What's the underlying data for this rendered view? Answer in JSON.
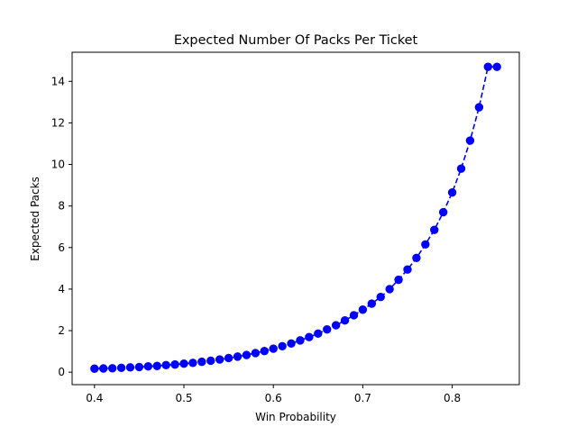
{
  "chart_data": {
    "type": "line",
    "title": "Expected Number Of Packs Per Ticket",
    "xlabel": "Win Probability",
    "ylabel": "Expected Packs",
    "xlim": [
      0.375,
      0.875
    ],
    "ylim": [
      -0.6,
      15.4
    ],
    "x_ticks": [
      0.4,
      0.5,
      0.6,
      0.7,
      0.8
    ],
    "x_tick_labels": [
      "0.4",
      "0.5",
      "0.6",
      "0.7",
      "0.8"
    ],
    "y_ticks": [
      0,
      2,
      4,
      6,
      8,
      10,
      12,
      14
    ],
    "y_tick_labels": [
      "0",
      "2",
      "4",
      "6",
      "8",
      "10",
      "12",
      "14"
    ],
    "grid": false,
    "series": [
      {
        "color": "#0000ff",
        "line_style": "dashed",
        "marker": "circle",
        "x": [
          0.4,
          0.41,
          0.42,
          0.43,
          0.44,
          0.45,
          0.46,
          0.47,
          0.48,
          0.49,
          0.5,
          0.51,
          0.52,
          0.53,
          0.54,
          0.55,
          0.56,
          0.57,
          0.58,
          0.59,
          0.6,
          0.61,
          0.62,
          0.63,
          0.64,
          0.65,
          0.66,
          0.67,
          0.68,
          0.69,
          0.7,
          0.71,
          0.72,
          0.73,
          0.74,
          0.75,
          0.76,
          0.77,
          0.78,
          0.79,
          0.8,
          0.81,
          0.82,
          0.83,
          0.84,
          0.85
        ],
        "y": [
          0.17,
          0.18,
          0.19,
          0.21,
          0.23,
          0.25,
          0.28,
          0.3,
          0.34,
          0.37,
          0.41,
          0.45,
          0.5,
          0.55,
          0.61,
          0.68,
          0.75,
          0.83,
          0.92,
          1.02,
          1.13,
          1.25,
          1.38,
          1.53,
          1.69,
          1.86,
          2.06,
          2.26,
          2.49,
          2.74,
          3.01,
          3.3,
          3.62,
          4.0,
          4.45,
          4.94,
          5.5,
          6.15,
          6.85,
          7.7,
          8.65,
          9.8,
          11.15,
          12.75,
          14.7,
          14.7
        ]
      }
    ]
  }
}
